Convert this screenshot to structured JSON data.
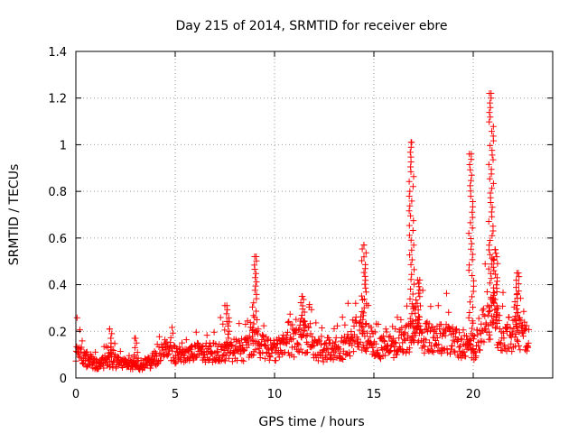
{
  "chart_data": {
    "type": "scatter",
    "title": "Day 215 of 2014, SRMTID for receiver ebre",
    "xlabel": "GPS time / hours",
    "ylabel": "SRMTID / TECUs",
    "xlim": [
      0,
      24
    ],
    "ylim": [
      0,
      1.4
    ],
    "xticks": [
      0,
      5,
      10,
      15,
      20
    ],
    "yticks": [
      0,
      0.2,
      0.4,
      0.6,
      0.8,
      1,
      1.2,
      1.4
    ],
    "ytick_labels": [
      "0",
      "0.2",
      "0.4",
      "0.6",
      "0.8",
      "1",
      "1.2",
      "1.4"
    ],
    "grid": true,
    "marker": "+",
    "color": "#ff0000",
    "series": [
      {
        "name": "SRMTID",
        "baseline": [
          [
            0.0,
            0.12
          ],
          [
            0.3,
            0.1
          ],
          [
            0.6,
            0.07
          ],
          [
            1.0,
            0.06
          ],
          [
            1.5,
            0.07
          ],
          [
            2.0,
            0.07
          ],
          [
            2.5,
            0.06
          ],
          [
            3.0,
            0.05
          ],
          [
            3.5,
            0.06
          ],
          [
            4.0,
            0.08
          ],
          [
            4.3,
            0.11
          ],
          [
            4.6,
            0.12
          ],
          [
            5.0,
            0.1
          ],
          [
            5.5,
            0.09
          ],
          [
            6.0,
            0.11
          ],
          [
            6.5,
            0.1
          ],
          [
            7.0,
            0.11
          ],
          [
            7.5,
            0.12
          ],
          [
            8.0,
            0.11
          ],
          [
            8.5,
            0.12
          ],
          [
            9.0,
            0.16
          ],
          [
            9.5,
            0.13
          ],
          [
            10.0,
            0.12
          ],
          [
            10.5,
            0.14
          ],
          [
            11.0,
            0.15
          ],
          [
            11.5,
            0.18
          ],
          [
            12.0,
            0.13
          ],
          [
            12.5,
            0.11
          ],
          [
            13.0,
            0.11
          ],
          [
            13.5,
            0.13
          ],
          [
            14.0,
            0.17
          ],
          [
            14.5,
            0.2
          ],
          [
            15.0,
            0.13
          ],
          [
            15.5,
            0.13
          ],
          [
            16.0,
            0.13
          ],
          [
            16.5,
            0.16
          ],
          [
            17.0,
            0.2
          ],
          [
            17.5,
            0.18
          ],
          [
            18.0,
            0.16
          ],
          [
            18.5,
            0.17
          ],
          [
            19.0,
            0.15
          ],
          [
            19.5,
            0.13
          ],
          [
            20.0,
            0.12
          ],
          [
            20.5,
            0.22
          ],
          [
            21.0,
            0.25
          ],
          [
            21.5,
            0.17
          ],
          [
            22.0,
            0.18
          ],
          [
            22.5,
            0.2
          ],
          [
            22.8,
            0.18
          ]
        ],
        "peaks": [
          {
            "x": 1.7,
            "y": 0.21
          },
          {
            "x": 3.0,
            "y": 0.17
          },
          {
            "x": 7.6,
            "y": 0.31
          },
          {
            "x": 9.0,
            "y": 0.52
          },
          {
            "x": 11.4,
            "y": 0.35
          },
          {
            "x": 14.5,
            "y": 0.57
          },
          {
            "x": 16.9,
            "y": 1.01
          },
          {
            "x": 17.2,
            "y": 0.42
          },
          {
            "x": 19.9,
            "y": 0.96
          },
          {
            "x": 20.9,
            "y": 1.22
          },
          {
            "x": 21.1,
            "y": 0.55
          },
          {
            "x": 22.2,
            "y": 0.45
          }
        ],
        "y_min": 0.0,
        "y_max": 1.22
      }
    ]
  }
}
